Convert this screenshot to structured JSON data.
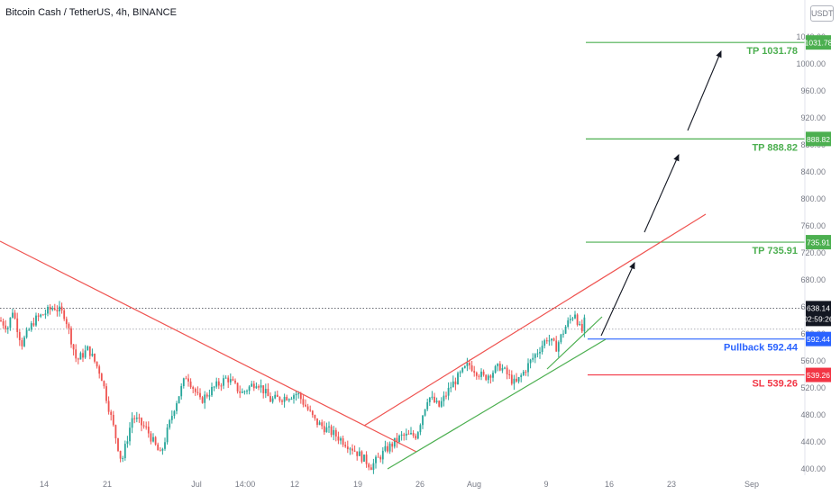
{
  "header": {
    "symbol_title": "Bitcoin Cash / TetherUS, 4h, BINANCE",
    "currency": "USDT"
  },
  "colors": {
    "up": "#26a69a",
    "down": "#ef5350",
    "trendline_red": "#ef5350",
    "trendline_green": "#4caf50",
    "level_green": "#4caf50",
    "level_blue": "#2962ff",
    "level_red": "#f23645",
    "current_price_bg": "#131722",
    "axis_text": "#787b86"
  },
  "chart_data": {
    "type": "candlestick",
    "price_axis": {
      "ticks": [
        1040.0,
        1000.0,
        960.0,
        920.0,
        880.0,
        840.0,
        800.0,
        760.0,
        720.0,
        680.0,
        640.0,
        600.0,
        560.0,
        520.0,
        480.0,
        440.0,
        400.0
      ]
    },
    "time_axis": {
      "labels": [
        "14",
        "21",
        "Jul",
        "14:00",
        "12",
        "19",
        "26",
        "Aug",
        "9",
        "16",
        "23",
        "Sep"
      ]
    },
    "current_price": "638.14",
    "countdown": "02:59:26",
    "levels": [
      {
        "label": "TP 1031.78",
        "price": 1031.78,
        "tag": "1031.78",
        "kind": "target"
      },
      {
        "label": "TP 888.82",
        "price": 888.82,
        "tag": "888.82",
        "kind": "target"
      },
      {
        "label": "TP 735.91",
        "price": 735.91,
        "tag": "735.91",
        "kind": "target"
      },
      {
        "label": "Pullback 592.44",
        "price": 592.44,
        "tag": "592.44",
        "kind": "pullback"
      },
      {
        "label": "SL 539.26",
        "price": 539.26,
        "tag": "539.26",
        "kind": "stop"
      }
    ],
    "price_path": [
      [
        620,
        0
      ],
      [
        610,
        9
      ],
      [
        635,
        14
      ],
      [
        585,
        24
      ],
      [
        620,
        38
      ],
      [
        640,
        60
      ],
      [
        628,
        72
      ],
      [
        560,
        85
      ],
      [
        578,
        98
      ],
      [
        540,
        112
      ],
      [
        410,
        135
      ],
      [
        478,
        147
      ],
      [
        458,
        163
      ],
      [
        420,
        178
      ],
      [
        490,
        193
      ],
      [
        540,
        207
      ],
      [
        500,
        222
      ],
      [
        520,
        237
      ],
      [
        535,
        252
      ],
      [
        512,
        268
      ],
      [
        530,
        285
      ],
      [
        502,
        300
      ],
      [
        506,
        315
      ],
      [
        512,
        330
      ],
      [
        470,
        350
      ],
      [
        452,
        370
      ],
      [
        432,
        390
      ],
      [
        404,
        412
      ],
      [
        428,
        428
      ],
      [
        448,
        445
      ],
      [
        450,
        462
      ],
      [
        508,
        475
      ],
      [
        492,
        487
      ],
      [
        522,
        500
      ],
      [
        555,
        520
      ],
      [
        535,
        537
      ],
      [
        552,
        555
      ],
      [
        525,
        572
      ],
      [
        562,
        590
      ],
      [
        594,
        607
      ],
      [
        580,
        617
      ],
      [
        612,
        628
      ],
      [
        632,
        638
      ],
      [
        600,
        645
      ],
      [
        636,
        652
      ]
    ]
  }
}
